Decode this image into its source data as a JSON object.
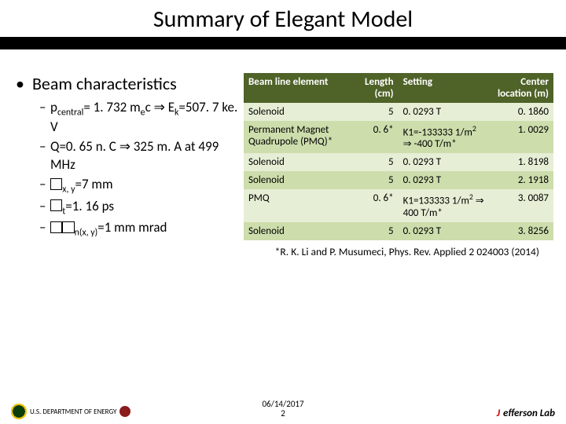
{
  "title": "Summary of Elegant Model",
  "main_bullet": "Beam characteristics",
  "sub_bullets": [
    "p<sub>central</sub>= 1. 732 m<sub>e</sub>c ⇒ E<sub>k</sub>=507. 7 ke. V",
    "Q=0. 65 n. C ⇒ 325 m. A at 499 MHz",
    "<span class='box'></span><sub>x, y</sub>=7 mm",
    "<span class='box'></span><sub>t</sub>=1. 16 ps",
    "<span class='box'></span><span class='box'></span><sub>n(x, y)</sub>=1 mm mrad"
  ],
  "table": {
    "header_bg": "#4f6228",
    "row_odd_bg": "#e6eed5",
    "row_even_bg": "#cdddac",
    "columns": [
      "Beam line element",
      "Length (cm)",
      "Setting",
      "Center location (m)"
    ],
    "rows": [
      [
        "Solenoid",
        "5",
        "0. 0293 T",
        "0. 1860"
      ],
      [
        "Permanent Magnet Quadrupole (PMQ)*",
        "0. 6*",
        "K1=-133333 1/m<sup>2</sup> ⇒ -400 T/m*",
        "1. 0029"
      ],
      [
        "Solenoid",
        "5",
        "0. 0293 T",
        "1. 8198"
      ],
      [
        "Solenoid",
        "5",
        "0. 0293 T",
        "2. 1918"
      ],
      [
        "PMQ",
        "0. 6*",
        "K1=133333 1/m<sup>2</sup> ⇒ 400 T/m*",
        "3. 0087"
      ],
      [
        "Solenoid",
        "5",
        "0. 0293 T",
        "3. 8256"
      ]
    ]
  },
  "footnote": "*R. K. Li and P. Musumeci, Phys. Rev. Applied 2 024003 (2014)",
  "footer": {
    "date": "06/14/2017",
    "page": "2",
    "left_label": "U.S. DEPARTMENT OF ENERGY",
    "right_label_html": "<span class='j'>J</span>efferson Lab"
  }
}
